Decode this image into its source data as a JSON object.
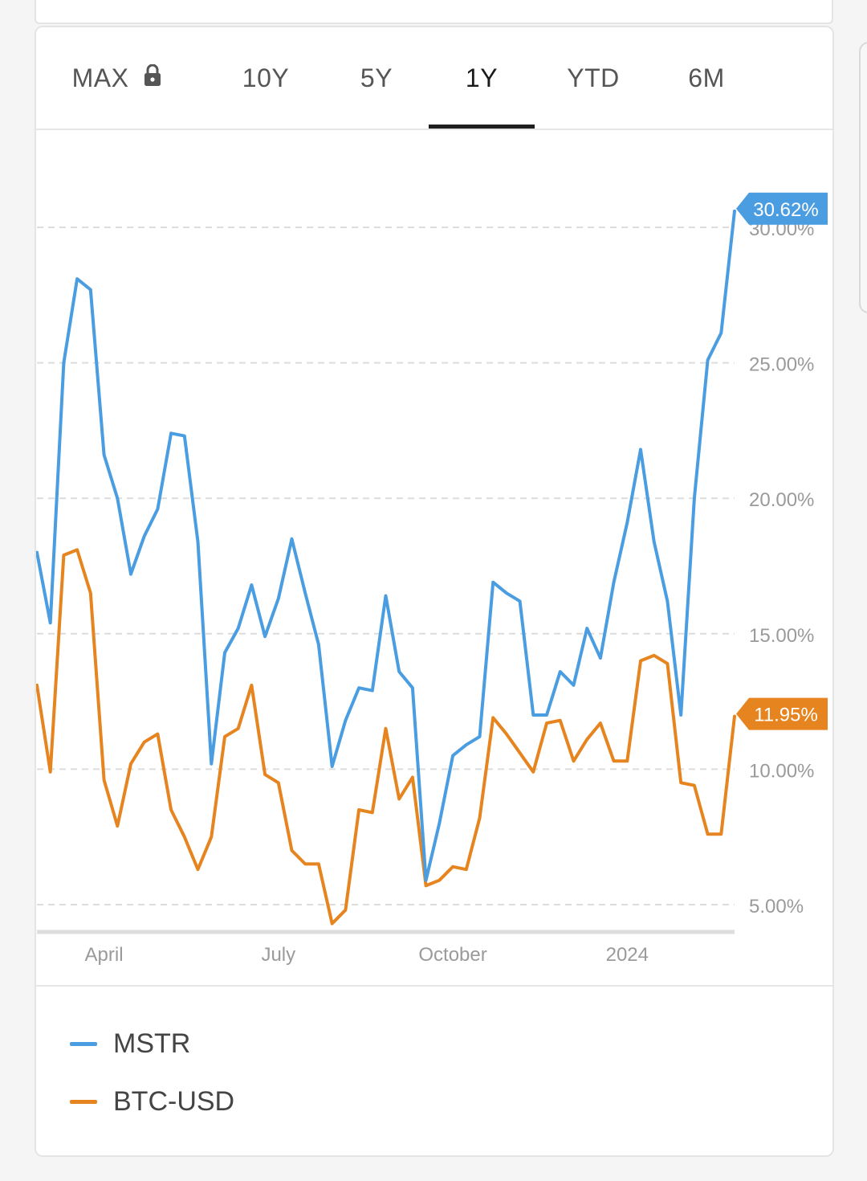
{
  "tabs": [
    {
      "label": "MAX",
      "locked": true,
      "active": false
    },
    {
      "label": "10Y",
      "active": false
    },
    {
      "label": "5Y",
      "active": false
    },
    {
      "label": "1Y",
      "active": true
    },
    {
      "label": "YTD",
      "active": false
    },
    {
      "label": "6M",
      "active": false
    }
  ],
  "icons": {
    "lock": "lock-icon"
  },
  "colors": {
    "mstr": "#4a9de0",
    "btc": "#e6841f",
    "grid": "#dcdcdc",
    "axis_text": "#9a9a9a"
  },
  "chart_data": {
    "type": "line",
    "y_unit": "%",
    "ylim": [
      4,
      31.5
    ],
    "y_ticks": [
      {
        "value": 5,
        "label": "5.00%"
      },
      {
        "value": 10,
        "label": "10.00%"
      },
      {
        "value": 15,
        "label": "15.00%"
      },
      {
        "value": 20,
        "label": "20.00%"
      },
      {
        "value": 25,
        "label": "25.00%"
      },
      {
        "value": 30,
        "label": "30.00%"
      }
    ],
    "x_ticks": [
      {
        "index": 5,
        "label": "April"
      },
      {
        "index": 18,
        "label": "July"
      },
      {
        "index": 31,
        "label": "October"
      },
      {
        "index": 44,
        "label": "2024"
      }
    ],
    "grid": "horizontal-dashed",
    "legend_position": "bottom",
    "series": [
      {
        "name": "MSTR",
        "color": "#4a9de0",
        "end_label": "30.62%",
        "values": [
          18.0,
          15.4,
          25.0,
          28.1,
          27.7,
          21.6,
          20.0,
          17.2,
          18.6,
          19.6,
          22.4,
          22.3,
          18.4,
          10.2,
          14.3,
          15.2,
          16.8,
          14.9,
          16.3,
          18.5,
          16.5,
          14.6,
          10.1,
          11.8,
          13.0,
          12.9,
          16.4,
          13.6,
          13.0,
          5.9,
          8.0,
          10.5,
          10.9,
          11.2,
          16.9,
          16.5,
          16.2,
          12.0,
          12.0,
          13.6,
          13.1,
          15.2,
          14.1,
          16.9,
          19.1,
          21.8,
          18.4,
          16.2,
          12.0,
          20.0,
          25.1,
          26.1,
          30.6
        ]
      },
      {
        "name": "BTC-USD",
        "color": "#e6841f",
        "end_label": "11.95%",
        "values": [
          13.1,
          9.9,
          17.9,
          18.1,
          16.5,
          9.6,
          7.9,
          10.2,
          11.0,
          11.3,
          8.5,
          7.5,
          6.3,
          7.5,
          11.2,
          11.5,
          13.1,
          9.8,
          9.5,
          7.0,
          6.5,
          6.5,
          4.3,
          4.8,
          8.5,
          8.4,
          11.5,
          8.9,
          9.7,
          5.7,
          5.9,
          6.4,
          6.3,
          8.2,
          11.9,
          11.3,
          10.6,
          9.9,
          11.7,
          11.8,
          10.3,
          11.1,
          11.7,
          10.3,
          10.3,
          14.0,
          14.2,
          13.9,
          9.5,
          9.4,
          7.6,
          7.6,
          11.95
        ]
      }
    ]
  },
  "legend": [
    {
      "label": "MSTR",
      "color": "#4a9de0"
    },
    {
      "label": "BTC-USD",
      "color": "#e6841f"
    }
  ]
}
